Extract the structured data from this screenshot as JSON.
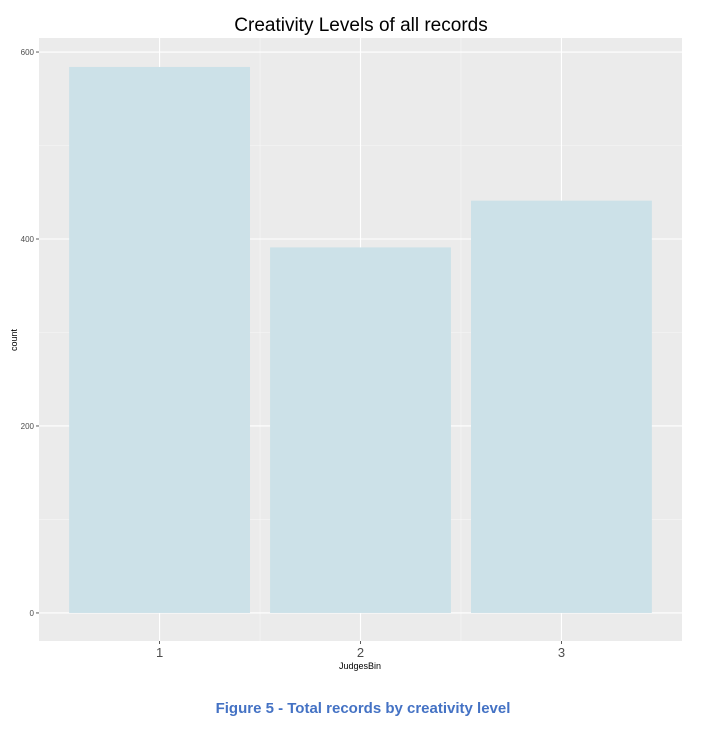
{
  "chart_data": {
    "type": "bar",
    "title": "Creativity Levels of all records",
    "xlabel": "JudgesBin",
    "ylabel": "count",
    "categories": [
      "1",
      "2",
      "3"
    ],
    "values": [
      584,
      391,
      441
    ],
    "ylim": [
      -30,
      615
    ],
    "yticks": [
      0,
      200,
      400,
      600
    ],
    "grid": true,
    "bar_color": "#cce1e8",
    "panel_color": "#ebebeb"
  },
  "caption": "Figure 5 - Total records by creativity level"
}
